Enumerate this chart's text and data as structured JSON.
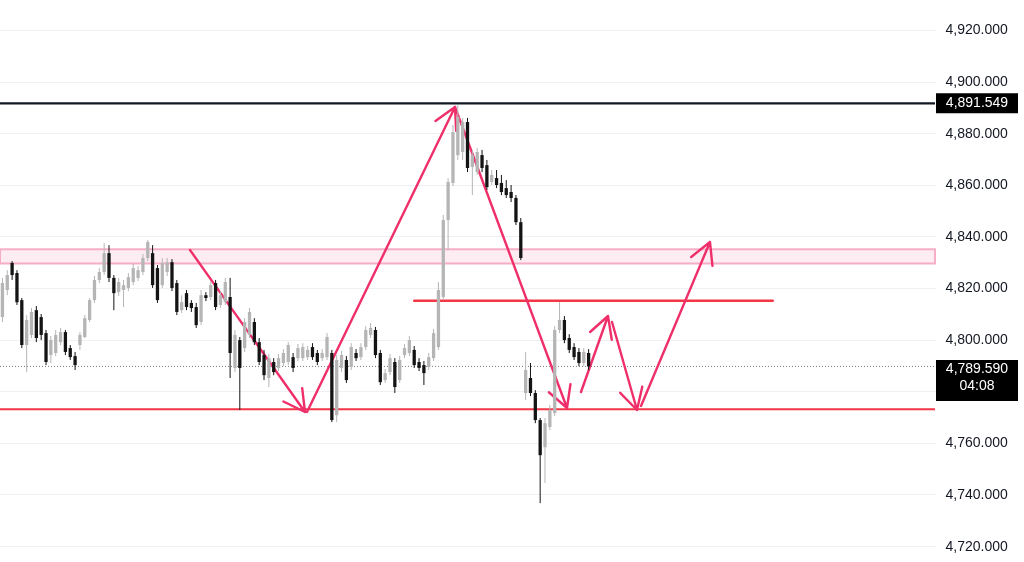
{
  "chart_data": {
    "type": "candlestick",
    "categories": [
      null,
      null,
      null,
      null,
      null,
      null,
      null,
      null,
      null,
      null,
      null,
      null,
      null,
      null,
      null,
      null,
      null,
      null,
      null,
      null,
      null,
      null,
      null,
      null,
      null,
      null,
      null,
      null,
      null,
      null,
      null,
      null,
      null,
      null,
      null,
      null,
      null,
      null,
      null,
      null,
      null,
      null,
      null,
      null,
      null,
      null,
      null,
      null,
      null,
      null,
      null,
      null,
      null,
      null,
      null,
      null,
      null,
      null,
      null,
      null,
      null,
      null,
      null,
      null,
      null,
      null,
      null,
      null,
      null,
      null,
      null,
      null,
      null,
      null,
      null,
      null,
      null,
      null,
      null,
      null,
      null,
      null,
      null,
      null,
      null,
      null,
      null,
      null,
      null,
      null,
      null,
      null,
      null,
      null,
      null,
      null,
      null,
      null,
      null,
      null,
      null,
      null,
      null,
      null,
      null,
      null,
      null,
      null,
      null,
      null,
      null,
      null,
      null,
      null,
      null,
      null,
      null,
      null,
      null,
      null,
      null,
      null,
      null,
      null,
      null,
      null,
      null,
      null,
      null,
      null,
      null,
      null,
      null,
      null,
      null,
      null,
      null,
      null,
      null,
      null,
      null,
      null,
      null,
      null,
      null,
      null,
      null,
      null,
      null,
      null,
      null,
      null,
      null,
      null,
      null,
      null,
      null,
      null,
      null,
      null,
      null,
      null,
      null,
      null,
      null,
      null,
      null,
      null,
      null,
      null,
      null,
      null,
      null,
      null,
      null,
      null,
      null,
      null,
      null,
      null,
      null,
      null,
      null,
      null,
      null,
      null,
      null,
      null,
      null,
      null,
      null,
      null,
      null
    ],
    "ohlc": [
      [
        4808.7,
        4823.9,
        4806.8,
        4821.9
      ],
      [
        4819.2,
        4826.9,
        4817.2,
        4825.0
      ],
      [
        4829.7,
        4830.4,
        4823.1,
        4825.0
      ],
      [
        4825.8,
        4826.9,
        4813.4,
        4814.5
      ],
      [
        4815.3,
        4816.1,
        4796.7,
        4797.9
      ],
      [
        4797.9,
        4809.5,
        4787.4,
        4807.6
      ],
      [
        4801.8,
        4812.2,
        4800.6,
        4810.7
      ],
      [
        4811.4,
        4813.0,
        4799.0,
        4800.6
      ],
      [
        4808.7,
        4809.9,
        4799.8,
        4801.8
      ],
      [
        4802.5,
        4803.7,
        4790.1,
        4791.3
      ],
      [
        4794.0,
        4801.4,
        4790.9,
        4799.8
      ],
      [
        4794.8,
        4803.7,
        4793.6,
        4801.8
      ],
      [
        4799.0,
        4804.5,
        4797.9,
        4802.9
      ],
      [
        4802.9,
        4803.7,
        4794.0,
        4795.2
      ],
      [
        4796.7,
        4797.9,
        4792.1,
        4793.2
      ],
      [
        4793.6,
        4795.2,
        4788.2,
        4790.1
      ],
      [
        4797.9,
        4802.9,
        4796.0,
        4801.8
      ],
      [
        4801.0,
        4809.5,
        4800.6,
        4808.3
      ],
      [
        4807.6,
        4816.1,
        4806.8,
        4815.3
      ],
      [
        4815.3,
        4824.6,
        4814.2,
        4823.1
      ],
      [
        4823.1,
        4827.7,
        4821.9,
        4826.2
      ],
      [
        4826.2,
        4837.4,
        4825.0,
        4833.5
      ],
      [
        4833.5,
        4836.6,
        4822.3,
        4823.9
      ],
      [
        4823.9,
        4825.0,
        4811.4,
        4818.0
      ],
      [
        4818.4,
        4823.9,
        4816.9,
        4822.3
      ],
      [
        4819.2,
        4823.1,
        4812.6,
        4821.1
      ],
      [
        4820.0,
        4825.8,
        4818.8,
        4824.2
      ],
      [
        4822.3,
        4829.3,
        4821.1,
        4827.7
      ],
      [
        4823.9,
        4828.5,
        4822.7,
        4826.9
      ],
      [
        4826.2,
        4833.2,
        4825.0,
        4831.6
      ],
      [
        4831.6,
        4838.6,
        4830.4,
        4837.8
      ],
      [
        4833.5,
        4836.6,
        4820.0,
        4821.1
      ],
      [
        4827.7,
        4828.9,
        4814.2,
        4815.3
      ],
      [
        4821.1,
        4831.6,
        4820.0,
        4829.7
      ],
      [
        4826.2,
        4831.6,
        4824.6,
        4830.0
      ],
      [
        4830.0,
        4831.2,
        4818.8,
        4820.0
      ],
      [
        4821.9,
        4823.1,
        4809.5,
        4810.7
      ],
      [
        4811.4,
        4817.2,
        4810.3,
        4814.5
      ],
      [
        4818.0,
        4819.2,
        4811.4,
        4812.6
      ],
      [
        4814.2,
        4815.3,
        4810.7,
        4812.2
      ],
      [
        4812.6,
        4814.2,
        4804.5,
        4805.6
      ],
      [
        4806.8,
        4819.2,
        4805.6,
        4817.2
      ],
      [
        4817.2,
        4818.4,
        4814.9,
        4816.1
      ],
      [
        4816.5,
        4822.7,
        4815.3,
        4821.1
      ],
      [
        4821.9,
        4823.1,
        4811.4,
        4812.6
      ],
      [
        4813.4,
        4818.8,
        4812.2,
        4817.2
      ],
      [
        4814.5,
        4823.9,
        4813.4,
        4822.3
      ],
      [
        4816.5,
        4823.9,
        4785.1,
        4794.8
      ],
      [
        4789.0,
        4803.7,
        4787.4,
        4801.8
      ],
      [
        4799.8,
        4801.0,
        4772.7,
        4789.0
      ],
      [
        4796.7,
        4808.3,
        4795.2,
        4806.8
      ],
      [
        4801.8,
        4812.2,
        4800.6,
        4810.7
      ],
      [
        4806.8,
        4808.3,
        4797.9,
        4799.0
      ],
      [
        4799.0,
        4800.6,
        4790.1,
        4791.3
      ],
      [
        4794.0,
        4796.0,
        4784.3,
        4786.2
      ],
      [
        4785.1,
        4794.4,
        4781.6,
        4792.8
      ],
      [
        4791.3,
        4792.8,
        4786.2,
        4787.4
      ],
      [
        4789.0,
        4794.4,
        4787.8,
        4792.8
      ],
      [
        4790.9,
        4796.3,
        4789.7,
        4794.8
      ],
      [
        4791.3,
        4799.0,
        4790.1,
        4797.9
      ],
      [
        4793.2,
        4794.8,
        4787.4,
        4789.0
      ],
      [
        4792.8,
        4798.3,
        4791.7,
        4796.7
      ],
      [
        4792.8,
        4798.6,
        4791.7,
        4797.1
      ],
      [
        4793.2,
        4797.5,
        4792.1,
        4796.0
      ],
      [
        4797.1,
        4798.6,
        4792.1,
        4793.2
      ],
      [
        4794.8,
        4796.0,
        4790.1,
        4791.3
      ],
      [
        4792.8,
        4796.3,
        4791.7,
        4794.8
      ],
      [
        4793.2,
        4802.5,
        4792.1,
        4801.0
      ],
      [
        4794.8,
        4796.0,
        4768.0,
        4768.8
      ],
      [
        4770.7,
        4794.0,
        4768.0,
        4792.1
      ],
      [
        4789.0,
        4795.6,
        4787.4,
        4794.0
      ],
      [
        4792.1,
        4793.6,
        4783.2,
        4784.3
      ],
      [
        4789.4,
        4798.6,
        4788.2,
        4797.1
      ],
      [
        4794.8,
        4796.3,
        4791.7,
        4792.8
      ],
      [
        4793.2,
        4798.6,
        4792.1,
        4797.1
      ],
      [
        4797.1,
        4805.2,
        4796.0,
        4803.7
      ],
      [
        4801.8,
        4806.4,
        4800.6,
        4804.5
      ],
      [
        4803.7,
        4804.9,
        4792.8,
        4794.0
      ],
      [
        4794.8,
        4796.0,
        4782.4,
        4783.5
      ],
      [
        4784.3,
        4788.6,
        4783.2,
        4787.0
      ],
      [
        4787.4,
        4794.4,
        4786.2,
        4792.8
      ],
      [
        4791.3,
        4792.8,
        4779.3,
        4781.6
      ],
      [
        4784.3,
        4793.6,
        4783.2,
        4792.1
      ],
      [
        4794.0,
        4798.3,
        4792.8,
        4796.7
      ],
      [
        4794.8,
        4801.4,
        4793.6,
        4799.8
      ],
      [
        4796.0,
        4797.5,
        4789.0,
        4790.1
      ],
      [
        4791.3,
        4792.8,
        4787.8,
        4789.0
      ],
      [
        4790.1,
        4791.7,
        4782.4,
        4787.0
      ],
      [
        4789.4,
        4794.8,
        4788.2,
        4793.2
      ],
      [
        4792.8,
        4804.1,
        4791.7,
        4802.5
      ],
      [
        4797.1,
        4822.3,
        4796.0,
        4819.2
      ],
      [
        4816.5,
        4848.3,
        4815.3,
        4846.3
      ],
      [
        4846.3,
        4862.6,
        4834.7,
        4861.1
      ],
      [
        4860.7,
        4883.2,
        4859.5,
        4880.4
      ],
      [
        4871.5,
        4890.9,
        4869.6,
        4886.3
      ],
      [
        4872.7,
        4885.9,
        4869.6,
        4884.3
      ],
      [
        4884.3,
        4885.9,
        4864.9,
        4866.5
      ],
      [
        4866.9,
        4873.5,
        4856.0,
        4871.5
      ],
      [
        4864.9,
        4874.2,
        4863.8,
        4872.7
      ],
      [
        4871.5,
        4873.5,
        4864.9,
        4866.5
      ],
      [
        4867.6,
        4869.6,
        4858.0,
        4859.1
      ],
      [
        4861.1,
        4865.7,
        4859.9,
        4863.8
      ],
      [
        4862.6,
        4865.7,
        4858.7,
        4859.9
      ],
      [
        4860.7,
        4863.8,
        4856.0,
        4857.2
      ],
      [
        4858.7,
        4861.8,
        4854.9,
        4856.0
      ],
      [
        4857.2,
        4859.9,
        4853.3,
        4854.9
      ],
      [
        4854.9,
        4856.0,
        4844.4,
        4845.5
      ],
      [
        4845.5,
        4847.1,
        4830.8,
        4831.6
      ],
      [
        4779.3,
        4795.2,
        4776.6,
        4788.2
      ],
      [
        4785.1,
        4790.9,
        4778.1,
        4779.3
      ],
      [
        4779.3,
        4780.4,
        4767.6,
        4768.8
      ],
      [
        4768.8,
        4769.6,
        4736.6,
        4755.2
      ],
      [
        4758.3,
        4769.6,
        4744.4,
        4767.6
      ],
      [
        4766.1,
        4774.6,
        4764.9,
        4772.7
      ],
      [
        4771.5,
        4805.2,
        4770.4,
        4803.7
      ],
      [
        4803.7,
        4814.5,
        4802.5,
        4807.6
      ],
      [
        4807.6,
        4809.1,
        4798.6,
        4799.8
      ],
      [
        4800.6,
        4802.1,
        4794.8,
        4796.0
      ],
      [
        4797.1,
        4798.6,
        4792.1,
        4793.2
      ],
      [
        4795.2,
        4796.7,
        4789.7,
        4790.9
      ],
      [
        4790.9,
        4796.7,
        4789.7,
        4795.2
      ],
      [
        4794.8,
        4796.3,
        4788.2,
        4789.59
      ],
      null,
      null,
      null,
      null,
      null,
      null,
      null,
      null,
      null,
      null,
      null,
      null,
      null,
      null,
      null,
      null,
      null,
      null,
      null,
      null,
      null,
      null,
      null,
      null,
      null,
      null,
      null,
      null,
      null,
      null,
      null,
      null,
      null,
      null,
      null,
      null,
      null,
      null,
      null,
      null,
      null,
      null,
      null,
      null,
      null,
      null,
      null,
      null,
      null,
      null,
      null,
      null,
      null,
      null,
      null,
      null,
      null,
      null,
      null,
      null,
      null,
      null,
      null,
      null,
      null,
      null,
      null,
      null,
      null,
      null,
      null
    ],
    "colors": [
      "#b5b5b5",
      "#b5b5b5",
      "#141414",
      "#141414",
      "#141414",
      "#b5b5b5",
      "#b5b5b5",
      "#141414",
      "#141414",
      "#141414",
      "#b5b5b5",
      "#b5b5b5",
      "#b5b5b5",
      "#141414",
      "#141414",
      "#141414",
      "#b5b5b5",
      "#b5b5b5",
      "#b5b5b5",
      "#b5b5b5",
      "#b5b5b5",
      "#b5b5b5",
      "#141414",
      "#141414",
      "#b5b5b5",
      "#b5b5b5",
      "#b5b5b5",
      "#b5b5b5",
      "#b5b5b5",
      "#b5b5b5",
      "#b5b5b5",
      "#141414",
      "#141414",
      "#b5b5b5",
      "#b5b5b5",
      "#141414",
      "#141414",
      "#b5b5b5",
      "#141414",
      "#141414",
      "#141414",
      "#b5b5b5",
      "#141414",
      "#b5b5b5",
      "#141414",
      "#b5b5b5",
      "#b5b5b5",
      "#141414",
      "#b5b5b5",
      "#141414",
      "#b5b5b5",
      "#b5b5b5",
      "#141414",
      "#141414",
      "#141414",
      "#b5b5b5",
      "#141414",
      "#b5b5b5",
      "#b5b5b5",
      "#b5b5b5",
      "#141414",
      "#b5b5b5",
      "#b5b5b5",
      "#b5b5b5",
      "#141414",
      "#141414",
      "#b5b5b5",
      "#b5b5b5",
      "#141414",
      "#b5b5b5",
      "#b5b5b5",
      "#141414",
      "#b5b5b5",
      "#141414",
      "#b5b5b5",
      "#b5b5b5",
      "#b5b5b5",
      "#141414",
      "#141414",
      "#b5b5b5",
      "#b5b5b5",
      "#141414",
      "#b5b5b5",
      "#b5b5b5",
      "#b5b5b5",
      "#141414",
      "#141414",
      "#141414",
      "#b5b5b5",
      "#b5b5b5",
      "#b5b5b5",
      "#b5b5b5",
      "#b5b5b5",
      "#b5b5b5",
      "#b5b5b5",
      "#b5b5b5",
      "#141414",
      "#b5b5b5",
      "#b5b5b5",
      "#141414",
      "#141414",
      "#b5b5b5",
      "#141414",
      "#141414",
      "#141414",
      "#141414",
      "#141414",
      "#141414",
      "#b5b5b5",
      "#141414",
      "#141414",
      "#141414",
      "#b5b5b5",
      "#b5b5b5",
      "#b5b5b5",
      "#b5b5b5",
      "#141414",
      "#141414",
      "#141414",
      "#141414",
      "#b5b5b5",
      "#141414",
      null,
      null,
      null,
      null,
      null,
      null,
      null,
      null,
      null,
      null,
      null,
      null,
      null,
      null,
      null,
      null,
      null,
      null,
      null,
      null,
      null,
      null,
      null,
      null,
      null,
      null,
      null,
      null,
      null,
      null,
      null,
      null,
      null,
      null,
      null,
      null,
      null,
      null,
      null,
      null,
      null,
      null,
      null,
      null,
      null,
      null,
      null,
      null,
      null,
      null,
      null,
      null,
      null,
      null,
      null,
      null,
      null,
      null,
      null,
      null,
      null,
      null,
      null,
      null,
      null,
      null,
      null,
      null,
      null,
      null,
      null
    ],
    "series": [
      {
        "type": "line",
        "color": "#f23645",
        "values": [
          null,
          null,
          null,
          null,
          null,
          null,
          null,
          null,
          null,
          null,
          null,
          null,
          null,
          null,
          null,
          null,
          null,
          null,
          null,
          null,
          null,
          null,
          null,
          null,
          null,
          null,
          null,
          null,
          null,
          null,
          null,
          null,
          null,
          null,
          null,
          null,
          null,
          null,
          null,
          null,
          null,
          null,
          null,
          null,
          null,
          null,
          null,
          null,
          null,
          null,
          null,
          null,
          null,
          null,
          null,
          null,
          null,
          null,
          null,
          null,
          null,
          null,
          null,
          null,
          null,
          null,
          null,
          null,
          null,
          null,
          null,
          null,
          null,
          null,
          null,
          null,
          null,
          null,
          null,
          null,
          null,
          null,
          null,
          null,
          null,
          4815,
          4815,
          4815,
          4815,
          4815,
          4815,
          4815,
          4815,
          4815,
          4815,
          4815,
          4815,
          4815,
          4815,
          4815,
          4815,
          4815,
          4815,
          4815,
          4815,
          4815,
          4815,
          4815,
          4815,
          4815,
          4815,
          4815,
          4815,
          4815,
          4815,
          4815,
          4815,
          4815,
          4815,
          4815,
          4815,
          4815,
          4815,
          4815,
          4815,
          4815,
          4815,
          4815,
          4815,
          4815,
          4815,
          4815,
          4815,
          4815,
          4815,
          4815,
          4815,
          4815,
          4815,
          4815,
          4815,
          4815,
          4815,
          4815,
          4815,
          4815,
          4815,
          4815,
          4815,
          4815,
          4815,
          4815,
          4815,
          4815,
          4815,
          4815,
          4815,
          4815,
          4815,
          4815,
          null,
          null,
          null,
          null,
          null,
          null,
          null,
          null,
          null,
          null,
          null,
          null,
          null,
          null,
          null,
          null,
          null,
          null,
          null,
          null,
          null,
          null,
          null,
          null,
          null,
          null,
          null,
          null,
          null,
          null,
          null,
          null,
          null
        ]
      }
    ],
    "ylim": [
      4713.8,
      4931.6
    ],
    "yticks": [
      {
        "value": 4720,
        "label": "4,720.000"
      },
      {
        "value": 4740,
        "label": "4,740.000"
      },
      {
        "value": 4760,
        "label": "4,760.000"
      },
      {
        "value": 4780,
        "label": null
      },
      {
        "value": 4800,
        "label": "4,800.000"
      },
      {
        "value": 4820,
        "label": "4,820.000"
      },
      {
        "value": 4840,
        "label": "4,840.000"
      },
      {
        "value": 4860,
        "label": "4,860.000"
      },
      {
        "value": 4880,
        "label": "4,880.000"
      },
      {
        "value": 4900,
        "label": "4,900.000"
      },
      {
        "value": 4920,
        "label": "4,920.000"
      }
    ],
    "grid": "y",
    "tick_labels": "y",
    "ref_lines": [
      {
        "axis": "y",
        "value": 4891.549,
        "label": "4,891.549",
        "color": "#131722",
        "line_style": "solid"
      },
      {
        "axis": "y",
        "value": 4789.59,
        "label": "4,789.590\n04:08",
        "color": "#787b86",
        "line_style": "dotted"
      },
      {
        "axis": "y",
        "value": 4773,
        "color": "#f23645",
        "line_style": "solid"
      }
    ],
    "bands": [
      {
        "axis": "y",
        "from": 4829.5,
        "to": 4835,
        "color": "#f48fb1"
      }
    ]
  }
}
